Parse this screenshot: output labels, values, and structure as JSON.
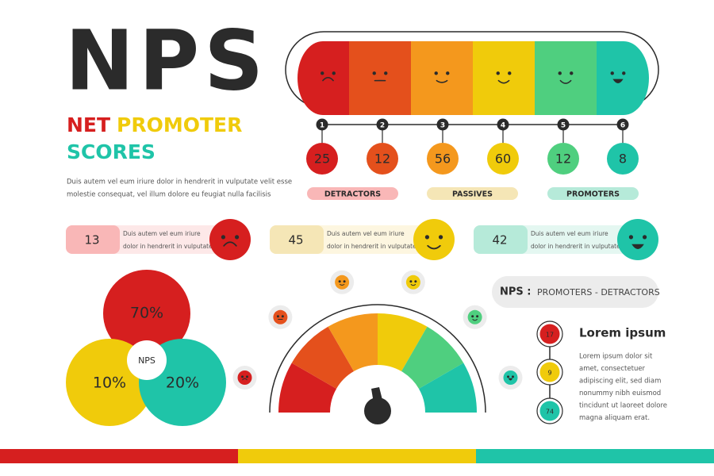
{
  "header": {
    "title": "NPS",
    "subtitle": [
      "NET",
      "PROMOTER",
      "SCORES"
    ],
    "description": [
      "Duis autem vel eum iriure dolor in hendrerit in vulputate velit esse",
      "molestie consequat, vel illum dolore eu feugiat nulla facilisis"
    ]
  },
  "scale": {
    "steps": [
      "1",
      "2",
      "3",
      "4",
      "5",
      "6"
    ],
    "values": [
      "25",
      "12",
      "56",
      "60",
      "12",
      "8"
    ],
    "groups": [
      "DETRACTORS",
      "PASSIVES",
      "PROMOTERS"
    ]
  },
  "cards": [
    {
      "value": "13",
      "text": [
        "Duis autem vel eum iriure",
        "dolor in hendrerit in vulputate"
      ]
    },
    {
      "value": "45",
      "text": [
        "Duis autem vel eum iriure",
        "dolor in hendrerit in vulputate"
      ]
    },
    {
      "value": "42",
      "text": [
        "Duis autem vel eum iriure",
        "dolor in hendrerit in vulputate"
      ]
    }
  ],
  "venn": {
    "values": [
      "70%",
      "10%",
      "20%"
    ],
    "center": "NPS"
  },
  "formula": {
    "label": "NPS :",
    "text": "PROMOTERS - DETRACTORS"
  },
  "side": {
    "numbers": [
      "17",
      "9",
      "74"
    ],
    "title": "Lorem ipsum",
    "body": [
      "Lorem ipsum dolor sit",
      "amet, consectetuer",
      "adipiscing elit, sed diam",
      "nonummy nibh euismod",
      "tincidunt ut laoreet dolore",
      "magna aliquam erat."
    ]
  }
}
